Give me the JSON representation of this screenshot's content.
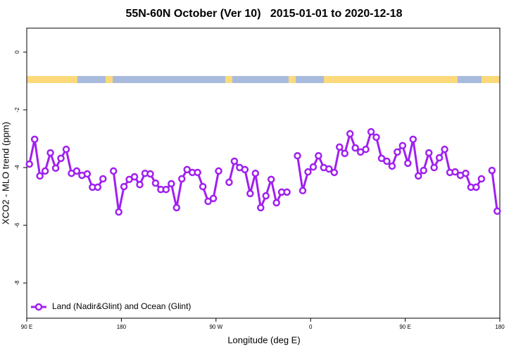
{
  "chart_data": {
    "type": "line",
    "title": "55N-60N October (Ver 10)   2015-01-01 to 2020-12-18",
    "x_label": "Longitude (deg E)",
    "y_label": "XCO2 - MLO trend (ppm)",
    "x": [
      92.5,
      97.5,
      102.5,
      107.5,
      112.5,
      117.5,
      122.5,
      127.5,
      132.5,
      137.5,
      142.5,
      147.5,
      152.5,
      157.5,
      162.5,
      167.5,
      172.5,
      177.5,
      182.5,
      187.5,
      192.5,
      197.5,
      202.5,
      207.5,
      212.5,
      217.5,
      222.5,
      227.5,
      232.5,
      237.5,
      242.5,
      247.5,
      252.5,
      257.5,
      262.5,
      267.5,
      272.5,
      277.5,
      282.5,
      287.5,
      292.5,
      297.5,
      302.5,
      307.5,
      312.5,
      317.5,
      322.5,
      327.5,
      332.5,
      337.5,
      342.5,
      347.5,
      352.5,
      357.5,
      362.5,
      367.5,
      372.5,
      377.5,
      382.5,
      387.5,
      392.5,
      397.5,
      402.5,
      407.5,
      412.5,
      417.5,
      422.5,
      427.5,
      432.5,
      437.5,
      442.5,
      447.5,
      452.5,
      457.5,
      462.5,
      467.5,
      472.5,
      477.5,
      482.5,
      487.5,
      492.5,
      497.5,
      502.5,
      507.5,
      512.5,
      517.5,
      522.5,
      527.5,
      532.5,
      537.5
    ],
    "series": [
      {
        "name": "Land (Nadir&Glint) and Ocean (Glint)",
        "color": "#a020f0",
        "values": [
          -3.88,
          -3.02,
          -4.29,
          -4.12,
          -3.49,
          -4.02,
          -3.68,
          -3.37,
          -4.2,
          -4.12,
          -4.27,
          -4.22,
          -4.68,
          -4.68,
          -4.39,
          null,
          -4.12,
          -5.54,
          -4.66,
          -4.41,
          -4.32,
          -4.59,
          -4.2,
          -4.22,
          -4.54,
          -4.76,
          -4.76,
          -4.56,
          -5.39,
          -4.39,
          -4.07,
          -4.17,
          -4.17,
          -4.66,
          -5.17,
          -5.07,
          -4.12,
          null,
          -4.51,
          -3.78,
          -4.0,
          -4.07,
          -4.9,
          -4.2,
          -5.39,
          -4.98,
          -4.41,
          -5.22,
          -4.85,
          -4.85,
          null,
          -3.59,
          -4.8,
          -4.15,
          -3.98,
          -3.59,
          -4.0,
          -4.05,
          -4.17,
          -3.29,
          -3.51,
          -2.83,
          -3.32,
          -3.46,
          -3.37,
          -2.76,
          -2.95,
          -3.68,
          -3.78,
          -3.95,
          -3.46,
          -3.24,
          -3.85,
          -3.02,
          -4.29,
          -4.1,
          -3.49,
          -4.0,
          -3.66,
          -3.37,
          -4.17,
          -4.15,
          -4.27,
          -4.2,
          -4.68,
          -4.68,
          -4.39,
          null,
          -4.1,
          -5.51
        ]
      }
    ],
    "xlim": [
      90,
      540
    ],
    "xticks": [
      {
        "value": 90,
        "label": "90 E"
      },
      {
        "value": 180,
        "label": "180"
      },
      {
        "value": 270,
        "label": "90 W"
      },
      {
        "value": 360,
        "label": "0"
      },
      {
        "value": 450,
        "label": "90 E"
      },
      {
        "value": 540,
        "label": "180"
      }
    ],
    "ylim": [
      -9.22,
      0.83
    ],
    "yticks": [
      0,
      -2,
      -4,
      -6,
      -8
    ],
    "legend": "bottom-left"
  }
}
